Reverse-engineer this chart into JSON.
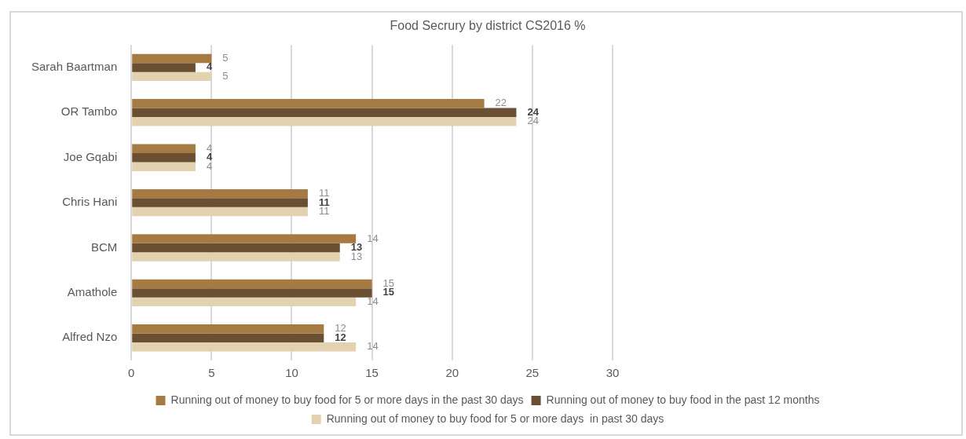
{
  "chart_data": {
    "type": "bar",
    "orientation": "horizontal",
    "title": "Food Secrury by district CS2016 %",
    "categories": [
      "Sarah Baartman",
      "OR Tambo",
      "Joe Gqabi",
      "Chris Hani",
      "BCM",
      "Amathole",
      "Alfred Nzo"
    ],
    "series": [
      {
        "name": "Running out of money to buy food for 5 or more days in the past 30 days",
        "color": "#a67a43",
        "values": [
          5,
          22,
          4,
          11,
          14,
          15,
          12
        ]
      },
      {
        "name": "Running out of money to buy food in the past 12 months",
        "color": "#6b4f32",
        "values": [
          4,
          24,
          4,
          11,
          13,
          15,
          12
        ]
      },
      {
        "name": "Running out of money to buy food for 5 or more days  in past 30 days",
        "color": "#e2d2b0",
        "values": [
          5,
          24,
          4,
          11,
          13,
          14,
          14
        ]
      }
    ],
    "xlim": [
      0,
      30
    ],
    "xticks": [
      0,
      5,
      10,
      15,
      20,
      25,
      30
    ],
    "grid": "x",
    "legend": "bottom",
    "data_labels": true
  }
}
